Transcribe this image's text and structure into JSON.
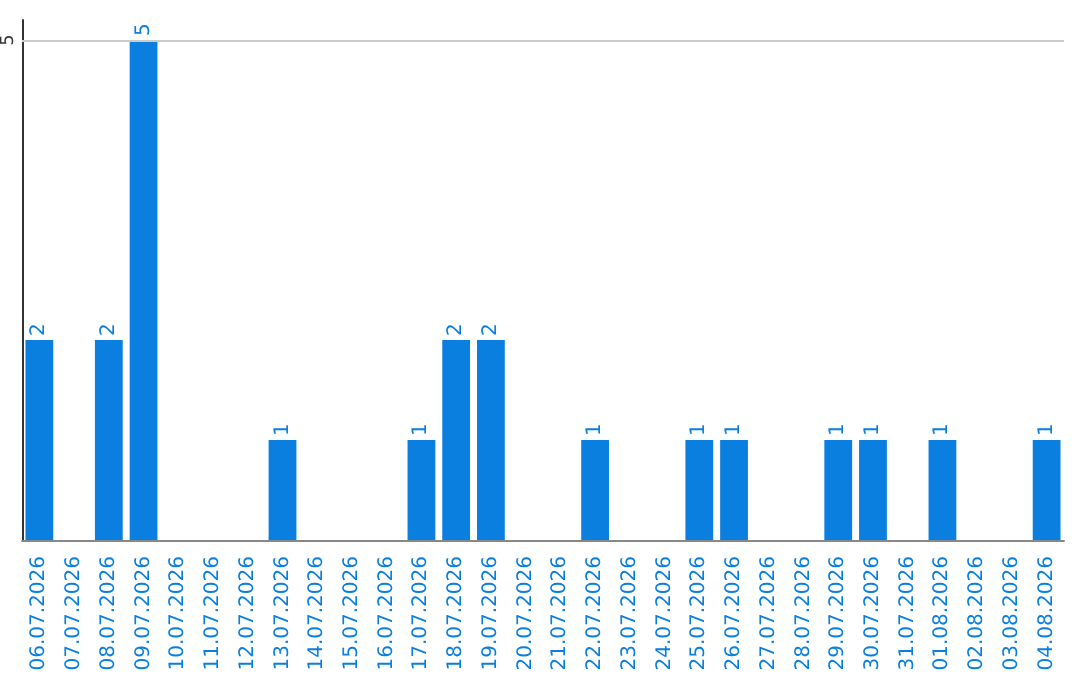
{
  "chart_data": {
    "type": "bar",
    "categories": [
      "06.07.2026",
      "07.07.2026",
      "08.07.2026",
      "09.07.2026",
      "10.07.2026",
      "11.07.2026",
      "12.07.2026",
      "13.07.2026",
      "14.07.2026",
      "15.07.2026",
      "16.07.2026",
      "17.07.2026",
      "18.07.2026",
      "19.07.2026",
      "20.07.2026",
      "21.07.2026",
      "22.07.2026",
      "23.07.2026",
      "24.07.2026",
      "25.07.2026",
      "26.07.2026",
      "27.07.2026",
      "28.07.2026",
      "29.07.2026",
      "30.07.2026",
      "31.07.2026",
      "01.08.2026",
      "02.08.2026",
      "03.08.2026",
      "04.08.2026"
    ],
    "values": [
      2,
      0,
      2,
      5,
      0,
      0,
      0,
      1,
      0,
      0,
      0,
      1,
      2,
      2,
      0,
      0,
      1,
      0,
      0,
      1,
      1,
      0,
      0,
      1,
      1,
      0,
      1,
      0,
      0,
      1
    ],
    "value_labels": [
      "2",
      null,
      "2",
      "5",
      null,
      null,
      null,
      "1",
      null,
      null,
      null,
      "1",
      "2",
      "2",
      null,
      null,
      "1",
      null,
      null,
      "1",
      "1",
      null,
      null,
      "1",
      "1",
      null,
      "1",
      null,
      null,
      "1"
    ],
    "color": "#0a7fe0",
    "ylim": [
      0,
      5.2
    ],
    "yticks": [
      5
    ],
    "grid": "y"
  }
}
